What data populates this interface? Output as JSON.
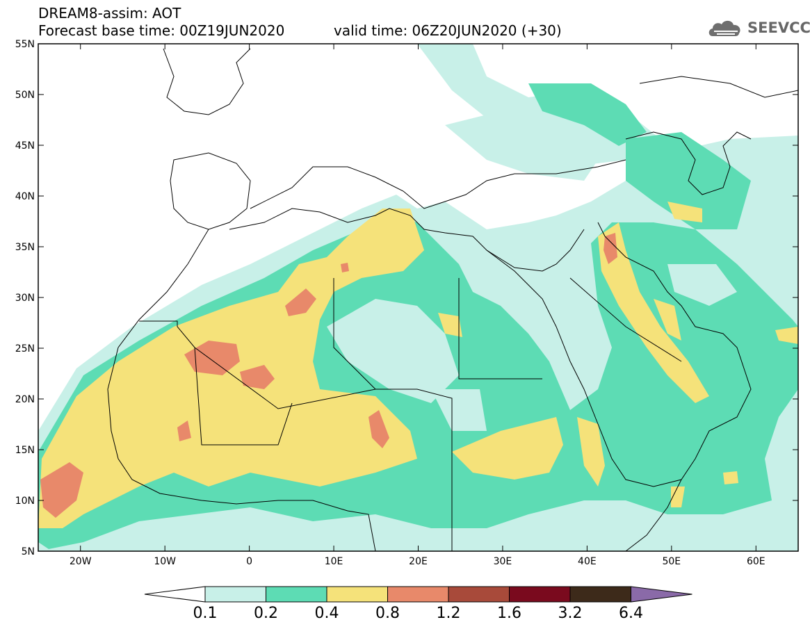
{
  "header": {
    "title": "DREAM8-assim: AOT",
    "base_time": "Forecast base time: 00Z19JUN2020",
    "valid_time": "valid time: 06Z20JUN2020 (+30)",
    "logo_text": "SEEVCCC"
  },
  "map": {
    "lat_labels": [
      "55N",
      "50N",
      "45N",
      "40N",
      "35N",
      "30N",
      "25N",
      "20N",
      "15N",
      "10N",
      "5N"
    ],
    "lon_labels": [
      "20W",
      "10W",
      "0",
      "10E",
      "20E",
      "30E",
      "40E",
      "50E",
      "60E"
    ],
    "lat_range": [
      5,
      55
    ],
    "lon_range": [
      -25,
      65
    ]
  },
  "colorbar": {
    "labels": [
      "0.1",
      "0.2",
      "0.4",
      "0.8",
      "1.2",
      "1.6",
      "3.2",
      "6.4"
    ],
    "colors": [
      "#ffffff",
      "#c8f0e8",
      "#5ddcb4",
      "#f5e27a",
      "#e8896a",
      "#a84a3a",
      "#7a0a1e",
      "#3d2a1a",
      "#8a6aa8"
    ]
  },
  "colors": {
    "level1": "#c8f0e8",
    "level2": "#5ddcb4",
    "level3": "#f5e27a",
    "level4": "#e8896a"
  }
}
